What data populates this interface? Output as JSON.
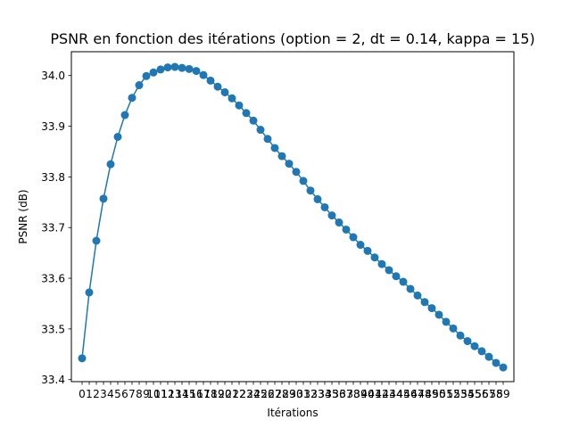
{
  "chart_data": {
    "type": "line",
    "title": "PSNR en fonction des itérations (option = 2, dt = 0.14, kappa = 15)",
    "xlabel": "Itérations",
    "ylabel": "PSNR (dB)",
    "xlim": [
      -1.5,
      60.5
    ],
    "ylim": [
      33.396,
      34.047
    ],
    "yticks": [
      33.4,
      33.5,
      33.6,
      33.7,
      33.8,
      33.9,
      34.0
    ],
    "ytick_labels": [
      "33.4",
      "33.5",
      "33.6",
      "33.7",
      "33.8",
      "33.9",
      "34.0"
    ],
    "grid": false,
    "color": "#1f77b4",
    "x": [
      0,
      1,
      2,
      3,
      4,
      5,
      6,
      7,
      8,
      9,
      10,
      11,
      12,
      13,
      14,
      15,
      16,
      17,
      18,
      19,
      20,
      21,
      22,
      23,
      24,
      25,
      26,
      27,
      28,
      29,
      30,
      31,
      32,
      33,
      34,
      35,
      36,
      37,
      38,
      39,
      40,
      41,
      42,
      43,
      44,
      45,
      46,
      47,
      48,
      49,
      50,
      51,
      52,
      53,
      54,
      55,
      56,
      57,
      58,
      59
    ],
    "xtick_labels": [
      "0",
      "1",
      "2",
      "3",
      "4",
      "5",
      "6",
      "7",
      "8",
      "9",
      "10",
      "11",
      "12",
      "13",
      "14",
      "15",
      "16",
      "17",
      "18",
      "19",
      "20",
      "21",
      "22",
      "23",
      "24",
      "25",
      "26",
      "27",
      "28",
      "29",
      "30",
      "31",
      "32",
      "33",
      "34",
      "35",
      "36",
      "37",
      "38",
      "39",
      "40",
      "41",
      "42",
      "43",
      "44",
      "45",
      "46",
      "47",
      "48",
      "49",
      "50",
      "51",
      "52",
      "53",
      "54",
      "55",
      "56",
      "57",
      "58",
      "59"
    ],
    "y": [
      33.442,
      33.572,
      33.674,
      33.757,
      33.825,
      33.879,
      33.922,
      33.956,
      33.981,
      33.999,
      34.006,
      34.012,
      34.016,
      34.017,
      34.015,
      34.013,
      34.009,
      34.001,
      33.99,
      33.978,
      33.967,
      33.955,
      33.941,
      33.926,
      33.911,
      33.893,
      33.875,
      33.857,
      33.841,
      33.826,
      33.81,
      33.792,
      33.773,
      33.756,
      33.74,
      33.724,
      33.71,
      33.696,
      33.681,
      33.666,
      33.654,
      33.641,
      33.628,
      33.616,
      33.604,
      33.593,
      33.579,
      33.566,
      33.553,
      33.541,
      33.528,
      33.514,
      33.501,
      33.487,
      33.476,
      33.466,
      33.456,
      33.445,
      33.433,
      33.424
    ]
  }
}
